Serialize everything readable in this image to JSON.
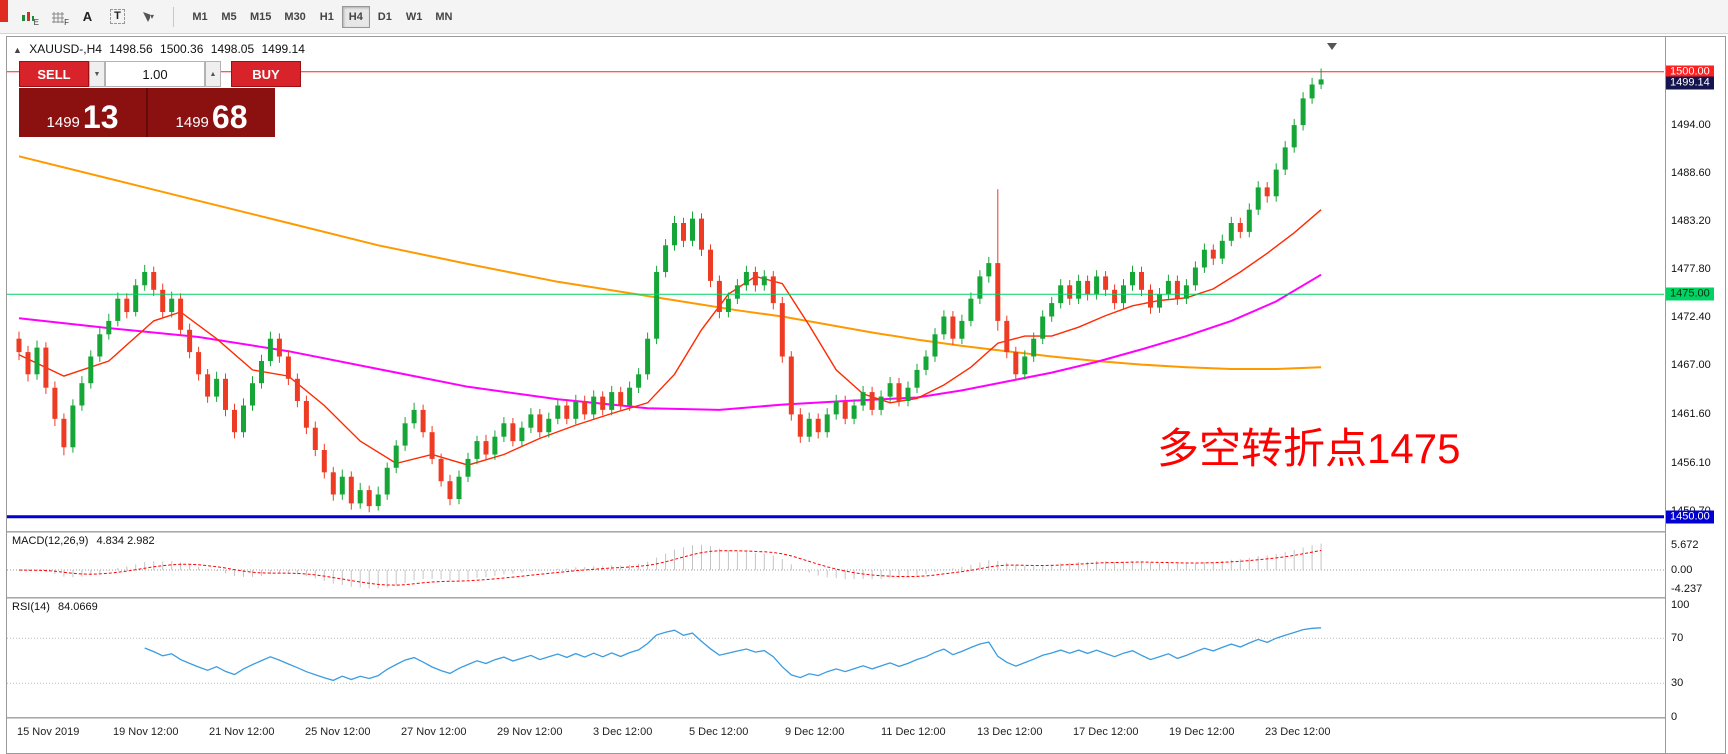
{
  "toolbar": {
    "icons": [
      {
        "name": "tick-chart-icon",
        "letter": "E"
      },
      {
        "name": "grid-icon",
        "letter": "F"
      },
      {
        "name": "font-icon",
        "letter": ""
      },
      {
        "name": "text-box-icon",
        "letter": ""
      },
      {
        "name": "cursor-tools-icon",
        "letter": ""
      }
    ],
    "timeframes": [
      "M1",
      "M5",
      "M15",
      "M30",
      "H1",
      "H4",
      "D1",
      "W1",
      "MN"
    ],
    "active_timeframe": "H4"
  },
  "chart": {
    "title": {
      "symbol": "XAUUSD-,H4",
      "open": "1498.56",
      "high": "1500.36",
      "low": "1498.05",
      "close": "1499.14"
    },
    "trade_panel": {
      "sell_label": "SELL",
      "buy_label": "BUY",
      "volume": "1.00",
      "bid_main": "1499",
      "bid_pips": "13",
      "ask_main": "1499",
      "ask_pips": "68"
    },
    "annotation": {
      "text": "多空转折点1475",
      "color": "#ff0000"
    },
    "current_price_tag": {
      "label": "1499.14",
      "value": 1499.14,
      "bg": "#14144e",
      "fg": "#ffffff"
    },
    "price_axis_labels": [
      "1494.00",
      "1488.60",
      "1483.20",
      "1477.80",
      "1472.40",
      "1467.00",
      "1461.60",
      "1456.10",
      "1450.70"
    ],
    "time_axis_labels": [
      "15 Nov 2019",
      "19 Nov 12:00",
      "21 Nov 12:00",
      "25 Nov 12:00",
      "27 Nov 12:00",
      "29 Nov 12:00",
      "3 Dec 12:00",
      "5 Dec 12:00",
      "9 Dec 12:00",
      "11 Dec 12:00",
      "13 Dec 12:00",
      "17 Dec 12:00",
      "19 Dec 12:00",
      "23 Dec 12:00"
    ]
  },
  "chart_data": {
    "type": "candlestick",
    "symbol": "XAUUSD",
    "timeframe": "H4",
    "ylim": [
      1448.4,
      1503.9
    ],
    "colors": {
      "up": "#16a637",
      "down": "#ee3b24",
      "ma_slow": "#ff9900",
      "ma_mid": "#ff00ff",
      "ma_fast": "#ff2a00",
      "rsi": "#3b9ce0",
      "macd_hist": "#c4c4c4",
      "macd_signal": "#ff0000"
    },
    "candles": [
      [
        1470.0,
        1470.8,
        1467.6,
        1468.5
      ],
      [
        1468.5,
        1469.2,
        1465.2,
        1466.0
      ],
      [
        1466.0,
        1469.8,
        1465.4,
        1469.0
      ],
      [
        1469.0,
        1469.6,
        1463.8,
        1464.5
      ],
      [
        1464.5,
        1465.2,
        1460.2,
        1461.0
      ],
      [
        1461.0,
        1461.6,
        1456.9,
        1457.8
      ],
      [
        1457.8,
        1463.2,
        1457.2,
        1462.5
      ],
      [
        1462.5,
        1465.8,
        1461.9,
        1465.0
      ],
      [
        1465.0,
        1468.7,
        1464.4,
        1468.0
      ],
      [
        1468.0,
        1471.2,
        1467.4,
        1470.5
      ],
      [
        1470.5,
        1472.8,
        1469.9,
        1472.0
      ],
      [
        1472.0,
        1475.2,
        1471.4,
        1474.5
      ],
      [
        1474.5,
        1475.1,
        1472.3,
        1473.0
      ],
      [
        1473.0,
        1476.7,
        1472.5,
        1476.0
      ],
      [
        1476.0,
        1478.3,
        1475.4,
        1477.5
      ],
      [
        1477.5,
        1478.1,
        1474.8,
        1475.5
      ],
      [
        1475.5,
        1476.2,
        1472.3,
        1473.0
      ],
      [
        1473.0,
        1475.3,
        1472.4,
        1474.5
      ],
      [
        1474.5,
        1475.1,
        1470.3,
        1471.0
      ],
      [
        1471.0,
        1471.7,
        1467.8,
        1468.5
      ],
      [
        1468.5,
        1469.1,
        1465.3,
        1466.0
      ],
      [
        1466.0,
        1466.6,
        1462.8,
        1463.5
      ],
      [
        1463.5,
        1466.3,
        1462.9,
        1465.5
      ],
      [
        1465.5,
        1466.1,
        1461.3,
        1462.0
      ],
      [
        1462.0,
        1462.7,
        1458.8,
        1459.5
      ],
      [
        1459.5,
        1463.3,
        1458.9,
        1462.5
      ],
      [
        1462.5,
        1465.8,
        1461.9,
        1465.0
      ],
      [
        1465.0,
        1468.2,
        1464.4,
        1467.5
      ],
      [
        1467.5,
        1470.8,
        1466.9,
        1470.0
      ],
      [
        1470.0,
        1470.6,
        1467.3,
        1468.0
      ],
      [
        1468.0,
        1468.7,
        1464.8,
        1465.5
      ],
      [
        1465.5,
        1466.1,
        1462.3,
        1463.0
      ],
      [
        1463.0,
        1463.6,
        1459.3,
        1460.0
      ],
      [
        1460.0,
        1460.7,
        1456.8,
        1457.5
      ],
      [
        1457.5,
        1458.2,
        1454.3,
        1455.0
      ],
      [
        1455.0,
        1455.6,
        1451.8,
        1452.5
      ],
      [
        1452.5,
        1455.3,
        1451.9,
        1454.5
      ],
      [
        1454.5,
        1455.1,
        1450.8,
        1451.5
      ],
      [
        1451.5,
        1453.8,
        1450.9,
        1453.0
      ],
      [
        1453.0,
        1453.5,
        1450.5,
        1451.2
      ],
      [
        1451.2,
        1453.4,
        1450.7,
        1452.5
      ],
      [
        1452.5,
        1456.1,
        1451.9,
        1455.5
      ],
      [
        1455.5,
        1458.6,
        1454.9,
        1458.0
      ],
      [
        1458.0,
        1461.2,
        1457.4,
        1460.5
      ],
      [
        1460.5,
        1462.8,
        1459.9,
        1462.0
      ],
      [
        1462.0,
        1462.6,
        1458.9,
        1459.5
      ],
      [
        1459.5,
        1460.2,
        1455.9,
        1456.5
      ],
      [
        1456.5,
        1457.1,
        1453.4,
        1454.0
      ],
      [
        1454.0,
        1454.7,
        1451.3,
        1452.0
      ],
      [
        1452.0,
        1455.2,
        1451.4,
        1454.5
      ],
      [
        1454.5,
        1457.2,
        1453.9,
        1456.5
      ],
      [
        1456.5,
        1459.1,
        1455.9,
        1458.5
      ],
      [
        1458.5,
        1459.2,
        1456.4,
        1457.0
      ],
      [
        1457.0,
        1459.7,
        1456.4,
        1459.0
      ],
      [
        1459.0,
        1461.2,
        1458.4,
        1460.5
      ],
      [
        1460.5,
        1461.1,
        1457.9,
        1458.5
      ],
      [
        1458.5,
        1460.7,
        1457.9,
        1460.0
      ],
      [
        1460.0,
        1462.2,
        1459.4,
        1461.5
      ],
      [
        1461.5,
        1462.1,
        1458.9,
        1459.5
      ],
      [
        1459.5,
        1461.7,
        1458.9,
        1461.0
      ],
      [
        1461.0,
        1463.2,
        1460.4,
        1462.5
      ],
      [
        1462.5,
        1463.1,
        1460.4,
        1461.0
      ],
      [
        1461.0,
        1463.7,
        1460.4,
        1463.0
      ],
      [
        1463.0,
        1463.6,
        1460.9,
        1461.5
      ],
      [
        1461.5,
        1464.2,
        1460.9,
        1463.5
      ],
      [
        1463.5,
        1464.1,
        1461.4,
        1462.0
      ],
      [
        1462.0,
        1464.7,
        1461.4,
        1464.0
      ],
      [
        1464.0,
        1464.6,
        1461.9,
        1462.5
      ],
      [
        1462.5,
        1465.2,
        1461.9,
        1464.5
      ],
      [
        1464.5,
        1466.7,
        1463.9,
        1466.0
      ],
      [
        1466.0,
        1470.7,
        1465.4,
        1470.0
      ],
      [
        1470.0,
        1478.2,
        1469.4,
        1477.5
      ],
      [
        1477.5,
        1481.2,
        1476.9,
        1480.5
      ],
      [
        1480.5,
        1483.8,
        1479.9,
        1483.0
      ],
      [
        1483.0,
        1483.6,
        1480.3,
        1481.0
      ],
      [
        1481.0,
        1484.3,
        1480.4,
        1483.5
      ],
      [
        1483.5,
        1484.1,
        1479.3,
        1480.0
      ],
      [
        1480.0,
        1480.6,
        1475.8,
        1476.5
      ],
      [
        1476.5,
        1477.1,
        1472.3,
        1473.0
      ],
      [
        1473.0,
        1475.2,
        1472.4,
        1474.5
      ],
      [
        1474.5,
        1476.7,
        1473.9,
        1476.0
      ],
      [
        1476.0,
        1478.2,
        1475.4,
        1477.5
      ],
      [
        1477.5,
        1478.1,
        1475.3,
        1476.0
      ],
      [
        1476.0,
        1477.7,
        1475.4,
        1477.0
      ],
      [
        1477.0,
        1477.6,
        1473.3,
        1474.0
      ],
      [
        1474.0,
        1474.7,
        1467.3,
        1468.0
      ],
      [
        1468.0,
        1468.6,
        1460.8,
        1461.5
      ],
      [
        1461.5,
        1462.2,
        1458.3,
        1459.0
      ],
      [
        1459.0,
        1461.7,
        1458.4,
        1461.0
      ],
      [
        1461.0,
        1461.6,
        1458.8,
        1459.5
      ],
      [
        1459.5,
        1462.2,
        1458.9,
        1461.5
      ],
      [
        1461.5,
        1463.7,
        1460.9,
        1463.0
      ],
      [
        1463.0,
        1463.6,
        1460.4,
        1461.0
      ],
      [
        1461.0,
        1463.2,
        1460.4,
        1462.5
      ],
      [
        1462.5,
        1464.7,
        1461.9,
        1464.0
      ],
      [
        1464.0,
        1464.6,
        1461.4,
        1462.0
      ],
      [
        1462.0,
        1464.2,
        1461.4,
        1463.5
      ],
      [
        1463.5,
        1465.7,
        1462.9,
        1465.0
      ],
      [
        1465.0,
        1465.6,
        1462.4,
        1463.0
      ],
      [
        1463.0,
        1465.2,
        1462.4,
        1464.5
      ],
      [
        1464.5,
        1467.2,
        1463.9,
        1466.5
      ],
      [
        1466.5,
        1468.7,
        1465.9,
        1468.0
      ],
      [
        1468.0,
        1471.2,
        1467.4,
        1470.5
      ],
      [
        1470.5,
        1473.2,
        1469.9,
        1472.5
      ],
      [
        1472.5,
        1473.1,
        1469.3,
        1470.0
      ],
      [
        1470.0,
        1472.7,
        1469.4,
        1472.0
      ],
      [
        1472.0,
        1475.2,
        1471.4,
        1474.5
      ],
      [
        1474.5,
        1477.7,
        1473.9,
        1477.0
      ],
      [
        1477.0,
        1479.2,
        1476.3,
        1478.5
      ],
      [
        1478.5,
        1486.8,
        1470.9,
        1472.0
      ],
      [
        1472.0,
        1472.6,
        1467.8,
        1468.5
      ],
      [
        1468.5,
        1469.1,
        1465.3,
        1466.0
      ],
      [
        1466.0,
        1468.7,
        1465.4,
        1468.0
      ],
      [
        1468.0,
        1470.7,
        1467.4,
        1470.0
      ],
      [
        1470.0,
        1473.2,
        1469.4,
        1472.5
      ],
      [
        1472.5,
        1474.7,
        1471.9,
        1474.0
      ],
      [
        1474.0,
        1476.7,
        1473.4,
        1476.0
      ],
      [
        1476.0,
        1476.6,
        1473.8,
        1474.5
      ],
      [
        1474.5,
        1477.2,
        1473.9,
        1476.5
      ],
      [
        1476.5,
        1477.1,
        1474.3,
        1475.0
      ],
      [
        1475.0,
        1477.7,
        1474.4,
        1477.0
      ],
      [
        1477.0,
        1477.6,
        1474.8,
        1475.5
      ],
      [
        1475.5,
        1476.1,
        1473.3,
        1474.0
      ],
      [
        1474.0,
        1476.7,
        1473.4,
        1476.0
      ],
      [
        1476.0,
        1478.2,
        1475.4,
        1477.5
      ],
      [
        1477.5,
        1478.1,
        1474.8,
        1475.5
      ],
      [
        1475.5,
        1476.1,
        1472.8,
        1473.5
      ],
      [
        1473.5,
        1475.7,
        1472.9,
        1475.0
      ],
      [
        1475.0,
        1477.2,
        1474.4,
        1476.5
      ],
      [
        1476.5,
        1477.1,
        1473.8,
        1474.5
      ],
      [
        1474.5,
        1476.7,
        1473.9,
        1476.0
      ],
      [
        1476.0,
        1478.7,
        1475.4,
        1478.0
      ],
      [
        1478.0,
        1480.7,
        1477.4,
        1480.0
      ],
      [
        1480.0,
        1480.6,
        1478.3,
        1479.0
      ],
      [
        1479.0,
        1481.7,
        1478.4,
        1481.0
      ],
      [
        1481.0,
        1483.7,
        1480.4,
        1483.0
      ],
      [
        1483.0,
        1483.6,
        1481.3,
        1482.0
      ],
      [
        1482.0,
        1485.2,
        1481.4,
        1484.5
      ],
      [
        1484.5,
        1487.7,
        1483.9,
        1487.0
      ],
      [
        1487.0,
        1487.6,
        1485.3,
        1486.0
      ],
      [
        1486.0,
        1489.7,
        1485.4,
        1489.0
      ],
      [
        1489.0,
        1492.2,
        1488.4,
        1491.5
      ],
      [
        1491.5,
        1494.7,
        1490.9,
        1494.0
      ],
      [
        1494.0,
        1497.7,
        1493.4,
        1497.0
      ],
      [
        1497.0,
        1499.3,
        1496.4,
        1498.56
      ],
      [
        1498.56,
        1500.36,
        1498.05,
        1499.14
      ]
    ],
    "overlays": {
      "ma_slow": [
        [
          0,
          1490.5
        ],
        [
          10,
          1488.0
        ],
        [
          20,
          1485.5
        ],
        [
          30,
          1483.0
        ],
        [
          40,
          1480.5
        ],
        [
          50,
          1478.4
        ],
        [
          60,
          1476.4
        ],
        [
          70,
          1474.8
        ],
        [
          75,
          1474.0
        ],
        [
          80,
          1473.2
        ],
        [
          85,
          1472.5
        ],
        [
          90,
          1471.6
        ],
        [
          95,
          1470.7
        ],
        [
          100,
          1469.9
        ],
        [
          105,
          1469.2
        ],
        [
          110,
          1468.6
        ],
        [
          115,
          1468.0
        ],
        [
          120,
          1467.5
        ],
        [
          125,
          1467.1
        ],
        [
          130,
          1466.8
        ],
        [
          135,
          1466.6
        ],
        [
          140,
          1466.6
        ],
        [
          145,
          1466.8
        ]
      ],
      "ma_mid": [
        [
          0,
          1472.3
        ],
        [
          10,
          1471.2
        ],
        [
          20,
          1470.2
        ],
        [
          30,
          1468.6
        ],
        [
          40,
          1466.6
        ],
        [
          50,
          1464.6
        ],
        [
          60,
          1463.2
        ],
        [
          70,
          1462.2
        ],
        [
          78,
          1462.0
        ],
        [
          85,
          1462.6
        ],
        [
          92,
          1463.0
        ],
        [
          100,
          1463.4
        ],
        [
          105,
          1464.2
        ],
        [
          110,
          1465.2
        ],
        [
          115,
          1466.2
        ],
        [
          120,
          1467.4
        ],
        [
          125,
          1468.8
        ],
        [
          130,
          1470.3
        ],
        [
          135,
          1472.0
        ],
        [
          140,
          1474.2
        ],
        [
          145,
          1477.2
        ]
      ],
      "ma_fast": [
        [
          0,
          1468.2
        ],
        [
          5,
          1465.8
        ],
        [
          10,
          1467.5
        ],
        [
          15,
          1472.0
        ],
        [
          18,
          1473.0
        ],
        [
          22,
          1470.0
        ],
        [
          26,
          1466.5
        ],
        [
          30,
          1465.8
        ],
        [
          34,
          1462.5
        ],
        [
          38,
          1458.5
        ],
        [
          42,
          1456.0
        ],
        [
          46,
          1457.0
        ],
        [
          50,
          1455.8
        ],
        [
          54,
          1457.0
        ],
        [
          58,
          1458.8
        ],
        [
          62,
          1460.3
        ],
        [
          66,
          1461.6
        ],
        [
          70,
          1462.8
        ],
        [
          73,
          1466.0
        ],
        [
          76,
          1471.0
        ],
        [
          79,
          1475.0
        ],
        [
          82,
          1477.0
        ],
        [
          85,
          1476.2
        ],
        [
          88,
          1471.5
        ],
        [
          91,
          1466.5
        ],
        [
          94,
          1463.8
        ],
        [
          97,
          1462.8
        ],
        [
          100,
          1463.3
        ],
        [
          103,
          1464.8
        ],
        [
          106,
          1466.8
        ],
        [
          109,
          1469.5
        ],
        [
          112,
          1470.3
        ],
        [
          115,
          1470.3
        ],
        [
          118,
          1471.3
        ],
        [
          121,
          1472.6
        ],
        [
          124,
          1473.7
        ],
        [
          127,
          1474.3
        ],
        [
          130,
          1474.6
        ],
        [
          133,
          1475.6
        ],
        [
          136,
          1477.5
        ],
        [
          139,
          1479.6
        ],
        [
          142,
          1481.9
        ],
        [
          145,
          1484.5
        ]
      ]
    },
    "hlines": [
      {
        "value": 1500.0,
        "label": "1500.00",
        "color": "#ff2020",
        "width": 1,
        "tag_bg": "#ff2020",
        "tag_fg": "#ffffff"
      },
      {
        "value": 1475.0,
        "label": "1475.00",
        "color": "#00d264",
        "width": 1,
        "tag_bg": "#00d264",
        "tag_fg": "#00330f"
      },
      {
        "value": 1450.0,
        "label": "1450.00",
        "color": "#0000d0",
        "width": 3,
        "tag_bg": "#0000d0",
        "tag_fg": "#ffffff"
      }
    ],
    "indicators": [
      {
        "name": "MACD",
        "label": "MACD(12,26,9)",
        "values": "4.834 2.982",
        "params": [
          12,
          26,
          9
        ],
        "ylim": [
          -6.2,
          8.5
        ],
        "axis_labels": [
          "5.672",
          "0.00",
          "-4.237"
        ]
      },
      {
        "name": "RSI",
        "label": "RSI(14)",
        "values": "84.0669",
        "period": 14,
        "levels": [
          70,
          30
        ],
        "ylim": [
          0,
          105
        ],
        "axis_labels": [
          "100",
          "70",
          "30",
          "0"
        ]
      }
    ]
  }
}
